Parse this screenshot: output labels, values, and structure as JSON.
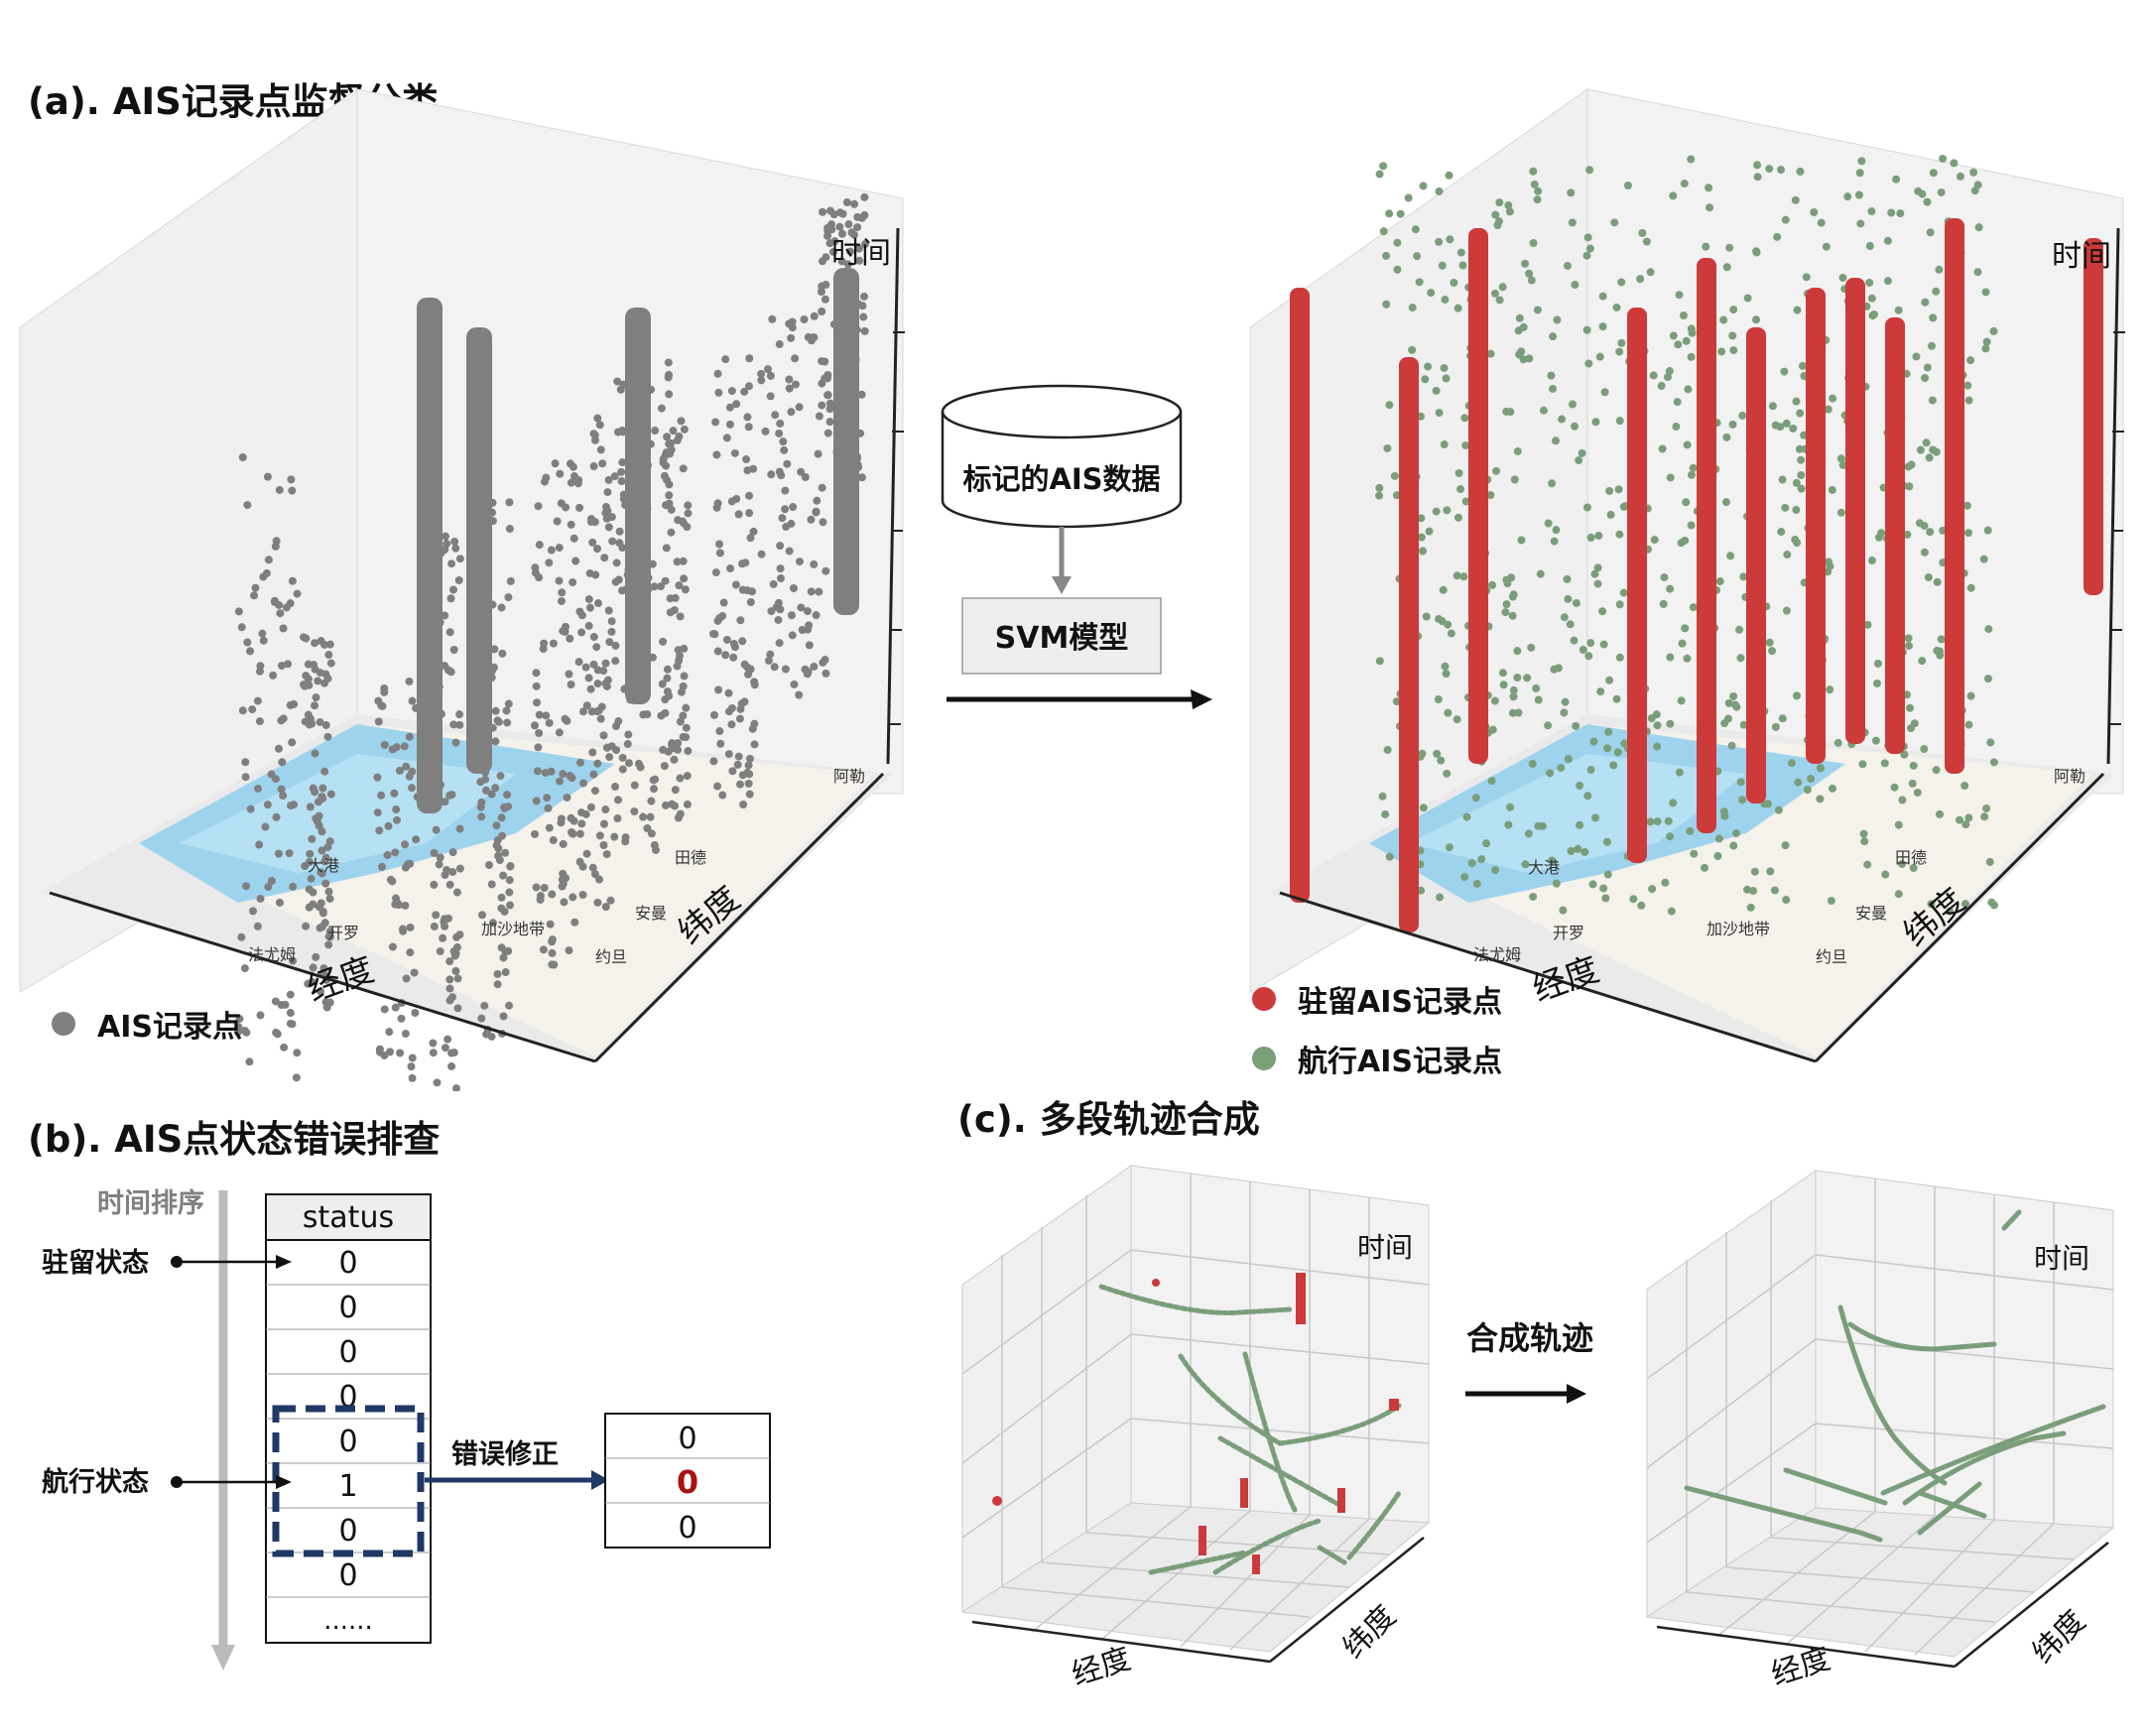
{
  "panel_a": {
    "title": "(a). AIS记录点监督分类",
    "left_plot": {
      "z_label": "时间",
      "x_label": "经度",
      "y_label": "纬度"
    },
    "right_plot": {
      "z_label": "时间",
      "x_label": "经度",
      "y_label": "纬度"
    },
    "legend_left": {
      "label": "AIS记录点",
      "color": "#808080"
    },
    "legend_right": [
      {
        "label": "驻留AIS记录点",
        "color": "#cc3a3a"
      },
      {
        "label": "航行AIS记录点",
        "color": "#7a9e7a"
      }
    ],
    "map_labels": [
      "大港",
      "开罗",
      "法尤姆",
      "加沙地带",
      "约旦",
      "安曼",
      "田德",
      "阿勒"
    ],
    "flow": {
      "db_label": "标记的AIS数据",
      "model_label": "SVM模型"
    }
  },
  "panel_b": {
    "title": "(b). AIS点状态错误排查",
    "axis_label": "时间排序",
    "stay_label": "驻留状态",
    "sail_label": "航行状态",
    "table_header": "status",
    "table_values": [
      "0",
      "0",
      "0",
      "0",
      "0",
      "1",
      "0",
      "0",
      "......"
    ],
    "fix_label": "错误修正",
    "fixed_values": [
      "0",
      "0",
      "0"
    ],
    "highlight_color": "#aa1111",
    "box_color": "#1f3864"
  },
  "panel_c": {
    "title": "(c). 多段轨迹合成",
    "left_plot": {
      "z_label": "时间",
      "x_label": "经度",
      "y_label": "纬度"
    },
    "right_plot": {
      "z_label": "时间",
      "x_label": "经度",
      "y_label": "纬度"
    },
    "arrow_label": "合成轨迹"
  },
  "colors": {
    "gray_points": "#7f7f7f",
    "stay": "#cc3a3a",
    "sail": "#7a9e7a",
    "sea": "#9ed3ee"
  }
}
